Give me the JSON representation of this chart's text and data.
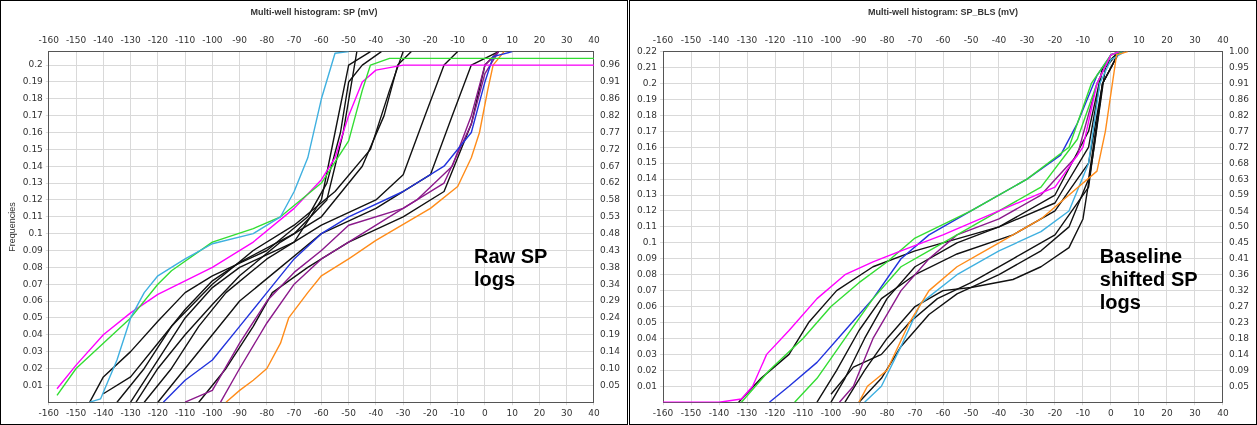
{
  "chart_data": [
    {
      "type": "line",
      "title": "Multi-well histogram: SP (mV)",
      "ylabel": "Frequencies",
      "grid": true,
      "marker": "none",
      "line_style": "solid",
      "xlim": [
        -160,
        40
      ],
      "xticks": [
        -160,
        -150,
        -140,
        -130,
        -120,
        -110,
        -100,
        -90,
        -80,
        -70,
        -60,
        -50,
        -40,
        -30,
        -20,
        -10,
        0,
        10,
        20,
        30,
        40
      ],
      "x2lim": [
        -160,
        40
      ],
      "x2ticks": [
        -160,
        -150,
        -140,
        -130,
        -120,
        -110,
        -100,
        -90,
        -80,
        -70,
        -60,
        -50,
        -40,
        -30,
        -20,
        -10,
        0,
        10,
        20,
        30,
        40
      ],
      "ylim": [
        0,
        0.208
      ],
      "yticks": [
        0.01,
        0.02,
        0.03,
        0.04,
        0.05,
        0.06,
        0.07,
        0.08,
        0.09,
        0.1,
        0.11,
        0.12,
        0.13,
        0.14,
        0.15,
        0.16,
        0.17,
        0.18,
        0.19,
        0.2
      ],
      "y2lim": [
        0,
        1
      ],
      "y2ticks": [
        {
          "value": 0.0481,
          "label": "0.05"
        },
        {
          "value": 0.0962,
          "label": "0.10"
        },
        {
          "value": 0.1442,
          "label": "0.14"
        },
        {
          "value": 0.1923,
          "label": "0.19"
        },
        {
          "value": 0.2404,
          "label": "0.24"
        },
        {
          "value": 0.2885,
          "label": "0.29"
        },
        {
          "value": 0.3365,
          "label": "0.34"
        },
        {
          "value": 0.3846,
          "label": "0.38"
        },
        {
          "value": 0.4327,
          "label": "0.43"
        },
        {
          "value": 0.4808,
          "label": "0.48"
        },
        {
          "value": 0.5288,
          "label": "0.53"
        },
        {
          "value": 0.5769,
          "label": "0.58"
        },
        {
          "value": 0.625,
          "label": "0.62"
        },
        {
          "value": 0.6731,
          "label": "0.67"
        },
        {
          "value": 0.7212,
          "label": "0.72"
        },
        {
          "value": 0.7692,
          "label": "0.77"
        },
        {
          "value": 0.8173,
          "label": "0.82"
        },
        {
          "value": 0.8649,
          "label": "0.86"
        },
        {
          "value": 0.9135,
          "label": "0.91"
        },
        {
          "value": 0.9615,
          "label": "0.96"
        }
      ],
      "annotations": [
        "Raw SP logs"
      ],
      "series": [
        {
          "color": "#3fb0e0",
          "x": [
            -145,
            -141,
            -135,
            -130,
            -125,
            -120,
            -110,
            -100,
            -85,
            -75,
            -70,
            -65,
            -60,
            -55,
            -50
          ],
          "values": [
            0,
            0.002,
            0.025,
            0.05,
            0.065,
            0.075,
            0.085,
            0.094,
            0.1,
            0.11,
            0.125,
            0.145,
            0.18,
            0.207,
            0.208
          ]
        },
        {
          "color": "#33dd33",
          "x": [
            -157,
            -150,
            -140,
            -130,
            -120,
            -115,
            -100,
            -85,
            -75,
            -60,
            -50,
            -45,
            -42,
            -35,
            40
          ],
          "values": [
            0.004,
            0.02,
            0.035,
            0.05,
            0.07,
            0.078,
            0.095,
            0.103,
            0.11,
            0.13,
            0.155,
            0.185,
            0.2,
            0.204,
            0.204
          ]
        },
        {
          "color": "#ff00ff",
          "x": [
            -157,
            -150,
            -140,
            -130,
            -120,
            -100,
            -85,
            -70,
            -60,
            -55,
            -50,
            -45,
            -40,
            -30,
            40
          ],
          "values": [
            0.008,
            0.022,
            0.04,
            0.053,
            0.064,
            0.08,
            0.095,
            0.115,
            0.132,
            0.145,
            0.17,
            0.19,
            0.197,
            0.2,
            0.2
          ]
        },
        {
          "color": "#2233dd",
          "x": [
            -118,
            -110,
            -100,
            -90,
            -80,
            -70,
            -60,
            -50,
            -30,
            -15,
            -5,
            0,
            3,
            10
          ],
          "values": [
            0,
            0.013,
            0.025,
            0.045,
            0.065,
            0.085,
            0.1,
            0.11,
            0.125,
            0.14,
            0.16,
            0.19,
            0.205,
            0.208
          ]
        },
        {
          "color": "#8b1a8b",
          "x": [
            -110,
            -100,
            -90,
            -80,
            -70,
            -60,
            -50,
            -30,
            -15,
            -5,
            0,
            5
          ],
          "values": [
            0,
            0.007,
            0.035,
            0.06,
            0.077,
            0.09,
            0.105,
            0.115,
            0.13,
            0.165,
            0.195,
            0.208
          ]
        },
        {
          "color": "#8b1a8b",
          "x": [
            -97,
            -90,
            -80,
            -70,
            -60,
            -45,
            -25,
            -12,
            -5,
            0,
            5
          ],
          "values": [
            0,
            0.02,
            0.047,
            0.07,
            0.085,
            0.1,
            0.12,
            0.14,
            0.17,
            0.2,
            0.208
          ]
        },
        {
          "color": "#ff8c1a",
          "x": [
            -95,
            -90,
            -85,
            -80,
            -75,
            -72,
            -65,
            -60,
            -50,
            -40,
            -20,
            -10,
            -5,
            -2,
            1,
            3,
            7
          ],
          "values": [
            0,
            0.007,
            0.013,
            0.02,
            0.035,
            0.05,
            0.065,
            0.075,
            0.085,
            0.096,
            0.115,
            0.128,
            0.145,
            0.16,
            0.185,
            0.2,
            0.208
          ]
        },
        {
          "color": "#111111",
          "x": [
            -145,
            -140,
            -130,
            -120,
            -110,
            -100,
            -80,
            -65,
            -58,
            -53,
            -50,
            -45,
            -38
          ],
          "values": [
            0,
            0.015,
            0.03,
            0.048,
            0.065,
            0.075,
            0.09,
            0.11,
            0.13,
            0.16,
            0.19,
            0.2,
            0.208
          ]
        },
        {
          "color": "#111111",
          "x": [
            -140,
            -130,
            -120,
            -110,
            -100,
            -90,
            -70,
            -58,
            -52,
            -47
          ],
          "values": [
            0.005,
            0.015,
            0.035,
            0.055,
            0.072,
            0.083,
            0.1,
            0.12,
            0.16,
            0.208
          ]
        },
        {
          "color": "#111111",
          "x": [
            -128,
            -120,
            -110,
            -100,
            -90,
            -75,
            -60,
            -45,
            -37,
            -32,
            -27
          ],
          "values": [
            0,
            0.02,
            0.04,
            0.058,
            0.075,
            0.095,
            0.11,
            0.14,
            0.17,
            0.2,
            0.208
          ]
        },
        {
          "color": "#111111",
          "x": [
            -125,
            -115,
            -105,
            -95,
            -80,
            -60,
            -40,
            -30,
            -22,
            -15,
            -10
          ],
          "values": [
            0,
            0.02,
            0.045,
            0.065,
            0.085,
            0.105,
            0.12,
            0.135,
            0.17,
            0.2,
            0.208
          ]
        },
        {
          "color": "#111111",
          "x": [
            -120,
            -110,
            -100,
            -90,
            -75,
            -60,
            -40,
            -20,
            -12,
            -5,
            5
          ],
          "values": [
            0,
            0.02,
            0.04,
            0.06,
            0.08,
            0.1,
            0.115,
            0.135,
            0.17,
            0.2,
            0.208
          ]
        },
        {
          "color": "#111111",
          "x": [
            -105,
            -95,
            -85,
            -78,
            -65,
            -50,
            -30,
            -15,
            -5,
            0,
            5
          ],
          "values": [
            0,
            0.02,
            0.045,
            0.065,
            0.08,
            0.095,
            0.11,
            0.125,
            0.165,
            0.2,
            0.208
          ]
        },
        {
          "color": "#111111",
          "x": [
            -130,
            -120,
            -110,
            -100,
            -90,
            -70,
            -60,
            -55,
            -50,
            -42
          ],
          "values": [
            0,
            0.025,
            0.05,
            0.068,
            0.08,
            0.095,
            0.12,
            0.16,
            0.2,
            0.208
          ]
        },
        {
          "color": "#111111",
          "x": [
            -135,
            -125,
            -115,
            -100,
            -85,
            -70,
            -55,
            -42,
            -35,
            -30
          ],
          "values": [
            0,
            0.02,
            0.045,
            0.07,
            0.09,
            0.105,
            0.125,
            0.15,
            0.185,
            0.208
          ]
        }
      ]
    },
    {
      "type": "line",
      "title": "Multi-well histogram: SP_BLS (mV)",
      "grid": true,
      "marker": "none",
      "line_style": "solid",
      "xlim": [
        -160,
        40
      ],
      "xticks": [
        -160,
        -150,
        -140,
        -130,
        -120,
        -110,
        -100,
        -90,
        -80,
        -70,
        -60,
        -50,
        -40,
        -30,
        -20,
        -10,
        0,
        10,
        20,
        30,
        40
      ],
      "x2lim": [
        -160,
        40
      ],
      "x2ticks": [
        -160,
        -150,
        -140,
        -130,
        -120,
        -110,
        -100,
        -90,
        -80,
        -70,
        -60,
        -50,
        -40,
        -30,
        -20,
        -10,
        0,
        10,
        20,
        30,
        40
      ],
      "ylim": [
        0,
        0.22
      ],
      "yticks": [
        0.01,
        0.02,
        0.03,
        0.04,
        0.05,
        0.06,
        0.07,
        0.08,
        0.09,
        0.1,
        0.11,
        0.12,
        0.13,
        0.14,
        0.15,
        0.16,
        0.17,
        0.18,
        0.19,
        0.2,
        0.21,
        0.22
      ],
      "y2lim": [
        0,
        1
      ],
      "y2ticks": [
        {
          "value": 0.0455,
          "label": "0.05"
        },
        {
          "value": 0.0909,
          "label": "0.09"
        },
        {
          "value": 0.1364,
          "label": "0.14"
        },
        {
          "value": 0.1818,
          "label": "0.18"
        },
        {
          "value": 0.2273,
          "label": "0.23"
        },
        {
          "value": 0.2727,
          "label": "0.27"
        },
        {
          "value": 0.3182,
          "label": "0.32"
        },
        {
          "value": 0.3636,
          "label": "0.36"
        },
        {
          "value": 0.4091,
          "label": "0.41"
        },
        {
          "value": 0.4545,
          "label": "0.45"
        },
        {
          "value": 0.5,
          "label": "0.50"
        },
        {
          "value": 0.5449,
          "label": "0.54"
        },
        {
          "value": 0.5909,
          "label": "0.59"
        },
        {
          "value": 0.6349,
          "label": "0.63"
        },
        {
          "value": 0.6818,
          "label": "0.68"
        },
        {
          "value": 0.7249,
          "label": "0.72"
        },
        {
          "value": 0.7727,
          "label": "0.77"
        },
        {
          "value": 0.8182,
          "label": "0.82"
        },
        {
          "value": 0.8636,
          "label": "0.86"
        },
        {
          "value": 0.9091,
          "label": "0.91"
        },
        {
          "value": 0.9545,
          "label": "0.95"
        },
        {
          "value": 1,
          "label": "1.00"
        }
      ],
      "annotations": [
        "Baseline shifted SP logs"
      ],
      "series": [
        {
          "color": "#ff00ff",
          "x": [
            -160,
            -140,
            -132,
            -128,
            -123,
            -115,
            -105,
            -95,
            -85,
            -75,
            -60,
            -40,
            -20,
            -10,
            -5,
            0,
            3
          ],
          "values": [
            0,
            0,
            0.002,
            0.01,
            0.03,
            0.045,
            0.065,
            0.08,
            0.088,
            0.095,
            0.105,
            0.12,
            0.135,
            0.16,
            0.2,
            0.218,
            0.22
          ]
        },
        {
          "color": "#33dd33",
          "x": [
            -113,
            -105,
            -95,
            -85,
            -75,
            -60,
            -40,
            -25,
            -12,
            -5,
            0,
            4
          ],
          "values": [
            0,
            0.015,
            0.04,
            0.065,
            0.085,
            0.1,
            0.12,
            0.135,
            0.165,
            0.2,
            0.218,
            0.22
          ]
        },
        {
          "color": "#33dd33",
          "x": [
            -132,
            -122,
            -110,
            -100,
            -90,
            -80,
            -70,
            -50,
            -30,
            -15,
            -7,
            0,
            3
          ],
          "values": [
            0,
            0.02,
            0.04,
            0.06,
            0.075,
            0.088,
            0.103,
            0.12,
            0.14,
            0.16,
            0.2,
            0.218,
            0.22
          ]
        },
        {
          "color": "#2233dd",
          "x": [
            -122,
            -115,
            -105,
            -95,
            -85,
            -75,
            -65,
            -50,
            -30,
            -18,
            -12,
            -5,
            0,
            4
          ],
          "values": [
            0,
            0.01,
            0.025,
            0.045,
            0.065,
            0.09,
            0.105,
            0.12,
            0.14,
            0.155,
            0.175,
            0.205,
            0.218,
            0.22
          ]
        },
        {
          "color": "#8b1a8b",
          "x": [
            -97,
            -92,
            -85,
            -75,
            -65,
            -55,
            -40,
            -25,
            -12,
            -5,
            0,
            4
          ],
          "values": [
            0,
            0.01,
            0.04,
            0.07,
            0.09,
            0.105,
            0.115,
            0.13,
            0.155,
            0.2,
            0.218,
            0.22
          ]
        },
        {
          "color": "#ff8c1a",
          "x": [
            -90,
            -87,
            -80,
            -72,
            -65,
            -55,
            -40,
            -25,
            -15,
            -5,
            -2,
            2,
            6
          ],
          "values": [
            0,
            0.01,
            0.02,
            0.05,
            0.07,
            0.085,
            0.1,
            0.115,
            0.13,
            0.145,
            0.17,
            0.218,
            0.22
          ]
        },
        {
          "color": "#3fb0e0",
          "x": [
            -88,
            -82,
            -75,
            -68,
            -55,
            -40,
            -25,
            -15,
            -8,
            -4,
            0,
            5
          ],
          "values": [
            0,
            0.01,
            0.035,
            0.062,
            0.08,
            0.095,
            0.107,
            0.12,
            0.15,
            0.2,
            0.215,
            0.22
          ]
        },
        {
          "color": "#111111",
          "x": [
            -133,
            -125,
            -115,
            -108,
            -98,
            -85,
            -70,
            -60,
            -40,
            -20,
            -8,
            -3,
            3
          ],
          "values": [
            0,
            0.015,
            0.03,
            0.05,
            0.07,
            0.085,
            0.095,
            0.1,
            0.11,
            0.13,
            0.17,
            0.21,
            0.22
          ]
        },
        {
          "color": "#111111",
          "x": [
            -100,
            -95,
            -88,
            -80,
            -70,
            -55,
            -40,
            -20,
            -8,
            -3,
            3
          ],
          "values": [
            0,
            0.015,
            0.04,
            0.065,
            0.085,
            0.1,
            0.11,
            0.125,
            0.16,
            0.21,
            0.22
          ]
        },
        {
          "color": "#111111",
          "x": [
            -95,
            -88,
            -80,
            -70,
            -60,
            -50,
            -35,
            -25,
            -15,
            -10,
            -6,
            -2,
            3
          ],
          "values": [
            0,
            0.02,
            0.04,
            0.06,
            0.07,
            0.072,
            0.077,
            0.085,
            0.097,
            0.115,
            0.16,
            0.21,
            0.22
          ]
        },
        {
          "color": "#111111",
          "x": [
            -90,
            -82,
            -75,
            -65,
            -55,
            -40,
            -25,
            -15,
            -8,
            -3,
            3
          ],
          "values": [
            0,
            0.015,
            0.035,
            0.055,
            0.068,
            0.08,
            0.095,
            0.11,
            0.14,
            0.2,
            0.22
          ]
        },
        {
          "color": "#111111",
          "x": [
            -105,
            -98,
            -90,
            -82,
            -70,
            -55,
            -35,
            -20,
            -8,
            -3,
            3
          ],
          "values": [
            0,
            0.02,
            0.045,
            0.065,
            0.08,
            0.093,
            0.105,
            0.12,
            0.15,
            0.2,
            0.22
          ]
        },
        {
          "color": "#111111",
          "x": [
            -100,
            -92,
            -82,
            -72,
            -62,
            -50,
            -35,
            -20,
            -8,
            -3,
            3
          ],
          "values": [
            0.005,
            0.022,
            0.03,
            0.05,
            0.065,
            0.075,
            0.09,
            0.105,
            0.135,
            0.2,
            0.22
          ]
        }
      ]
    }
  ]
}
